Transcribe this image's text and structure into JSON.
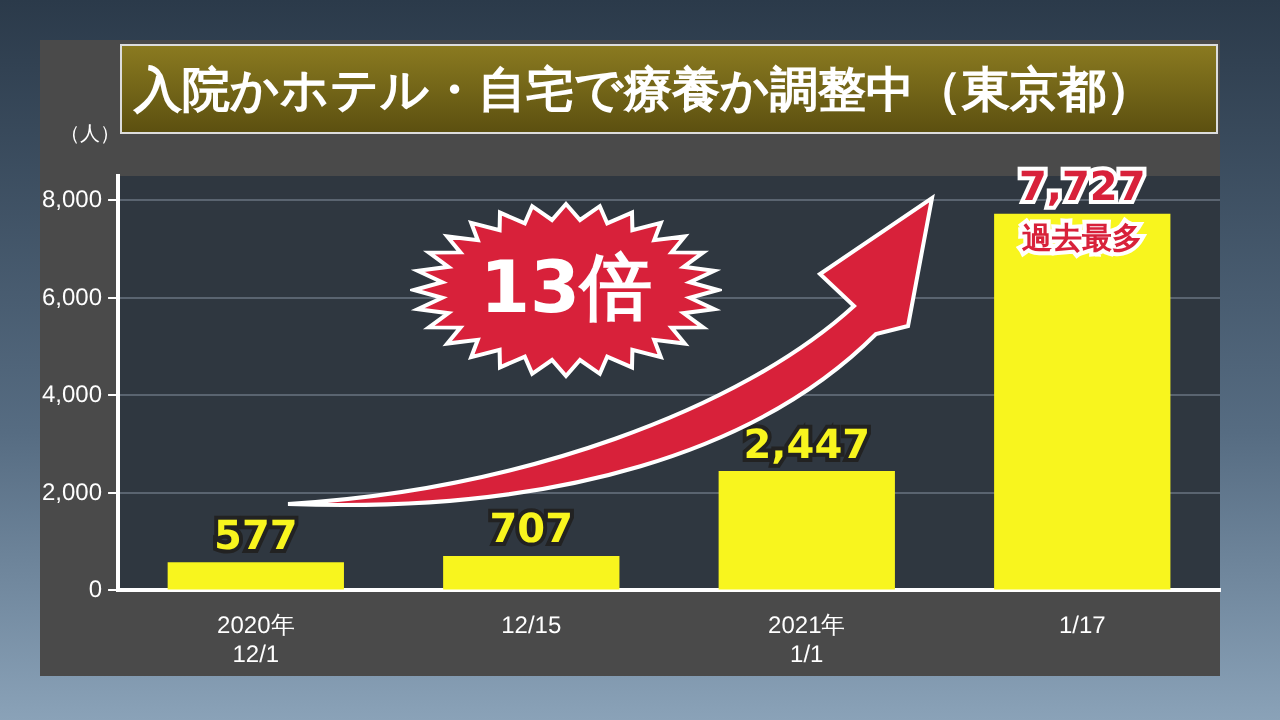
{
  "chart_data": {
    "type": "bar",
    "title": "入院かホテル・自宅で療養か調整中（東京都）",
    "ylabel": "（人）",
    "categories": [
      "2020年\n12/1",
      "12/15",
      "2021年\n1/1",
      "1/17"
    ],
    "values": [
      577,
      707,
      2447,
      7727
    ],
    "color": "#f8f51e",
    "value_labels": [
      "577",
      "707",
      "2,447",
      "7,727"
    ],
    "ylim": [
      0,
      8500
    ],
    "yticks": [
      0,
      {
        "value": 2000,
        "label": "2,000"
      },
      {
        "value": 4000,
        "label": "4,000"
      },
      {
        "value": 6000,
        "label": "6,000"
      },
      {
        "value": 8000,
        "label": "8,000"
      }
    ],
    "grid": "y",
    "annotations": [
      "13倍",
      "過去最多"
    ]
  }
}
